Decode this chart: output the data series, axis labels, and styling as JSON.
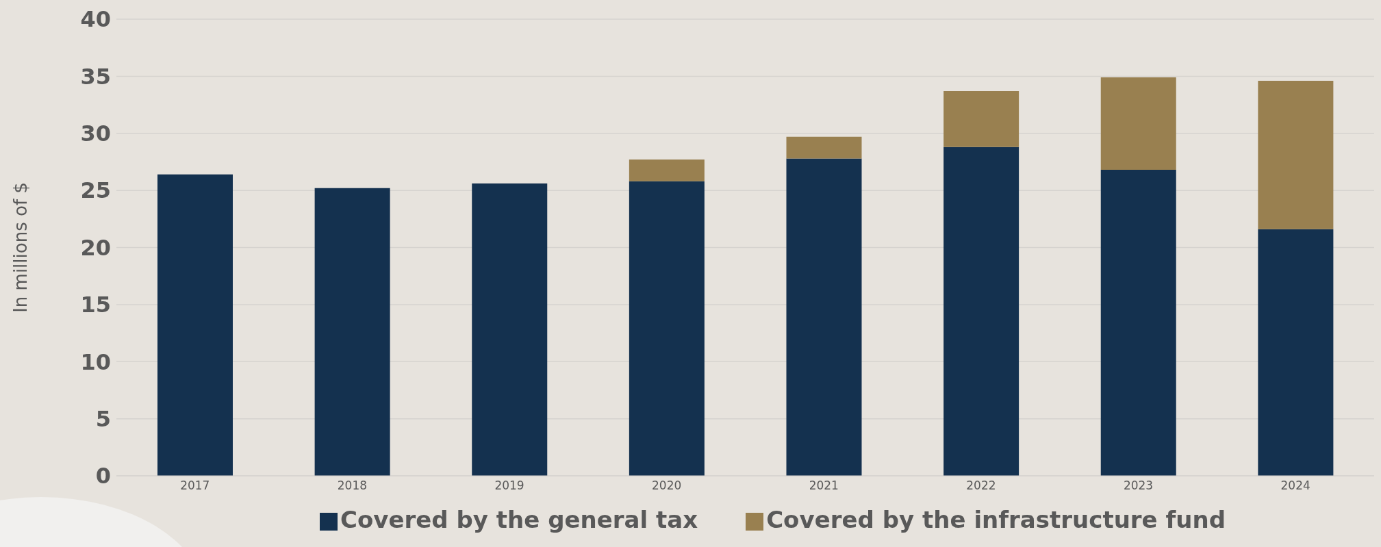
{
  "chart_data": {
    "type": "bar",
    "stacked": true,
    "ylabel": "In millions of $",
    "categories": [
      "2017",
      "2018",
      "2019",
      "2020",
      "2021",
      "2022",
      "2023",
      "2024"
    ],
    "series": [
      {
        "name": "Covered by the general tax",
        "color": "#14314f",
        "values": [
          26.4,
          25.2,
          25.6,
          25.8,
          27.8,
          28.8,
          26.8,
          21.6
        ]
      },
      {
        "name": "Covered by the infrastructure fund",
        "color": "#998050",
        "values": [
          null,
          null,
          null,
          1.9,
          1.9,
          4.9,
          8.1,
          13.0
        ]
      }
    ],
    "ylim": [
      0,
      40
    ],
    "yticks": [
      0,
      5,
      10,
      15,
      20,
      25,
      30,
      35,
      40
    ],
    "grid": "y",
    "legend": "bottom"
  }
}
